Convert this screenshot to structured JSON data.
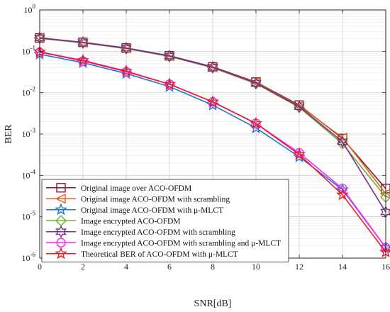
{
  "chart_data": {
    "type": "line",
    "title": "",
    "xlabel": "SNR[dB]",
    "ylabel": "BER",
    "xlim": [
      0,
      16
    ],
    "ylim": [
      1e-06,
      1
    ],
    "yscale": "log",
    "grid": true,
    "legend_position": "bottom-left",
    "x_ticks": [
      0,
      2,
      4,
      6,
      8,
      10,
      12,
      14,
      16
    ],
    "x_tick_labels": [
      "0",
      "2",
      "4",
      "6",
      "8",
      "10",
      "12",
      "14",
      "16"
    ],
    "y_ticks": [
      1e-06,
      1e-05,
      0.0001,
      0.001,
      0.01,
      0.1,
      1
    ],
    "y_tick_labels": [
      {
        "base": "10",
        "exp": "-6"
      },
      {
        "base": "10",
        "exp": "-5"
      },
      {
        "base": "10",
        "exp": "-4"
      },
      {
        "base": "10",
        "exp": "-3"
      },
      {
        "base": "10",
        "exp": "-2"
      },
      {
        "base": "10",
        "exp": "-1"
      },
      {
        "base": "10",
        "exp": "0"
      }
    ],
    "x": [
      0,
      2,
      4,
      6,
      8,
      10,
      12,
      14,
      16
    ],
    "series": [
      {
        "name": "Original image over ACO-OFDM",
        "color": "#8b1a2b",
        "marker": "square",
        "values": [
          0.21,
          0.165,
          0.12,
          0.078,
          0.042,
          0.018,
          0.005,
          0.00078,
          4.8e-05
        ]
      },
      {
        "name": "Original image ACO-OFDM with scrambling",
        "color": "#e2601f",
        "marker": "triangle-left",
        "values": [
          0.215,
          0.162,
          0.118,
          0.076,
          0.041,
          0.0175,
          0.0048,
          0.00082,
          3.6e-05
        ]
      },
      {
        "name": "Original image ACO-OFDM with μ-MLCT",
        "color": "#1f78c8",
        "marker": "star",
        "values": [
          0.085,
          0.053,
          0.029,
          0.014,
          0.005,
          0.0014,
          0.00028,
          4.5e-05,
          1.8e-06
        ]
      },
      {
        "name": "Image encrypted ACO-OFDM",
        "color": "#78ac2c",
        "marker": "diamond",
        "values": [
          0.205,
          0.16,
          0.116,
          0.075,
          0.04,
          0.0165,
          0.0044,
          0.00058,
          3e-05
        ]
      },
      {
        "name": "Image encrypted ACO-OFDM with scrambling",
        "color": "#7a2d8e",
        "marker": "hexagram",
        "values": [
          0.21,
          0.163,
          0.119,
          0.077,
          0.041,
          0.017,
          0.0046,
          0.00065,
          1.3e-05
        ]
      },
      {
        "name": "Image encrypted ACO-OFDM with scrambling and μ-MLCT",
        "color": "#ff22ff",
        "marker": "circle",
        "values": [
          0.095,
          0.058,
          0.032,
          0.016,
          0.006,
          0.0018,
          0.00035,
          4.8e-05,
          1.8e-06
        ]
      },
      {
        "name": "Theoretical  BER of ACO-OFDM with μ-MLCT",
        "color": "#ee1c25",
        "marker": "star",
        "values": [
          0.097,
          0.06,
          0.033,
          0.016,
          0.006,
          0.0018,
          0.00032,
          3.4e-05,
          1.4e-06
        ]
      }
    ]
  }
}
